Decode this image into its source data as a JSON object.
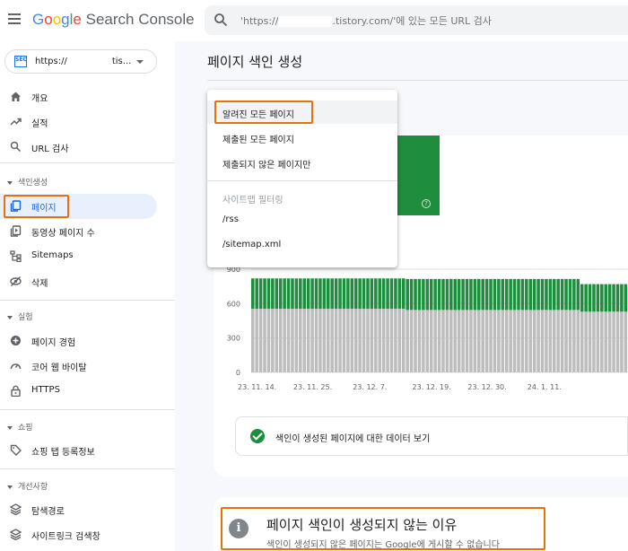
{
  "header": {
    "logo_google": "Google",
    "logo_product": "Search Console",
    "search_prefix": "'https://",
    "search_suffix": ".tistory.com/'에 있는 모든 URL 검사"
  },
  "property": {
    "badge": "SEO",
    "prefix": "https://",
    "suffix": "tis..."
  },
  "sidebar": {
    "top": [
      {
        "label": "개요",
        "icon": "home-icon"
      },
      {
        "label": "실적",
        "icon": "trending-up-icon"
      },
      {
        "label": "URL 검사",
        "icon": "search-icon"
      }
    ],
    "sections": {
      "indexing": "색인생성",
      "experience": "실험",
      "shopping": "쇼핑",
      "enhancements": "개선사항"
    },
    "indexing": [
      {
        "label": "페이지",
        "icon": "pages-icon"
      },
      {
        "label": "동영상 페이지 수",
        "icon": "video-pages-icon"
      },
      {
        "label": "Sitemaps",
        "icon": "sitemap-icon"
      },
      {
        "label": "삭제",
        "icon": "removals-icon"
      }
    ],
    "experience": [
      {
        "label": "페이지 경험",
        "icon": "page-experience-icon"
      },
      {
        "label": "코어 웹 바이탈",
        "icon": "speed-icon"
      },
      {
        "label": "HTTPS",
        "icon": "lock-icon"
      }
    ],
    "shopping": [
      {
        "label": "쇼핑 탭 등록정보",
        "icon": "tag-icon"
      }
    ],
    "enhancements": [
      {
        "label": "탐색경로",
        "icon": "breadcrumb-icon"
      },
      {
        "label": "사이트링크 검색창",
        "icon": "sitelinks-icon"
      }
    ]
  },
  "main": {
    "title": "페이지 색인 생성",
    "help_glyph": "?",
    "view_indexed_link": "색인이 생성된 페이지에 대한 데이터 보기",
    "reason_title": "페이지 색인이 생성되지 않는 이유",
    "reason_subtitle": "색인이 생성되지 않은 페이지는 Google에 게시할 수 없습니다",
    "info_glyph": "i"
  },
  "dropdown": {
    "items": [
      "알려진 모든 페이지",
      "제출된 모든 페이지",
      "제출되지 않은 페이지만"
    ],
    "sitemap_header": "사이트맵 필터링",
    "sitemaps": [
      "/rss",
      "/sitemap.xml"
    ]
  },
  "colors": {
    "indexed": "#1e8e3e",
    "not_indexed": "#bdbdbd",
    "highlight": "#e8710a",
    "active_nav": "#e8f0fe"
  },
  "chart_data": {
    "type": "bar",
    "stacked": true,
    "ylim": [
      0,
      900
    ],
    "y_ticks": [
      "0",
      "300",
      "600",
      "900"
    ],
    "x_tick_labels": [
      "23. 11. 14.",
      "23. 11. 25.",
      "23. 12. 7.",
      "23. 12. 19.",
      "23. 12. 30.",
      "24. 1. 11."
    ],
    "series": [
      {
        "values": [
          555,
          555,
          555,
          555,
          555,
          555,
          555,
          555,
          555,
          555,
          555,
          555,
          555,
          555,
          555,
          555,
          555,
          555,
          555,
          555,
          555,
          555,
          555,
          555,
          555,
          555,
          555,
          555,
          555,
          555,
          555,
          555,
          555,
          555,
          555,
          555,
          555,
          555,
          555,
          545,
          545,
          545,
          545,
          545,
          545,
          545,
          545,
          545,
          545,
          545,
          545,
          545,
          545,
          545,
          545,
          545,
          545,
          545,
          545,
          545,
          545,
          545,
          545,
          545,
          545,
          545,
          545,
          545,
          545,
          545,
          545,
          545,
          545,
          545,
          545,
          545,
          545,
          545,
          545,
          545,
          545,
          545,
          545,
          530,
          530,
          530,
          530,
          530,
          530,
          530,
          530,
          530,
          530,
          530,
          530
        ]
      },
      {
        "values": [
          265,
          265,
          265,
          265,
          265,
          265,
          265,
          265,
          265,
          265,
          265,
          265,
          265,
          265,
          265,
          265,
          265,
          265,
          265,
          265,
          265,
          265,
          265,
          265,
          265,
          265,
          265,
          265,
          265,
          265,
          265,
          265,
          265,
          265,
          265,
          265,
          265,
          265,
          265,
          270,
          270,
          270,
          270,
          270,
          270,
          270,
          270,
          270,
          270,
          270,
          270,
          270,
          270,
          270,
          270,
          270,
          270,
          270,
          270,
          270,
          270,
          270,
          270,
          270,
          270,
          270,
          270,
          270,
          270,
          270,
          270,
          270,
          270,
          270,
          270,
          270,
          270,
          270,
          270,
          270,
          270,
          270,
          270,
          240,
          240,
          240,
          240,
          240,
          240,
          240,
          240,
          240,
          240,
          240,
          240
        ]
      }
    ]
  }
}
